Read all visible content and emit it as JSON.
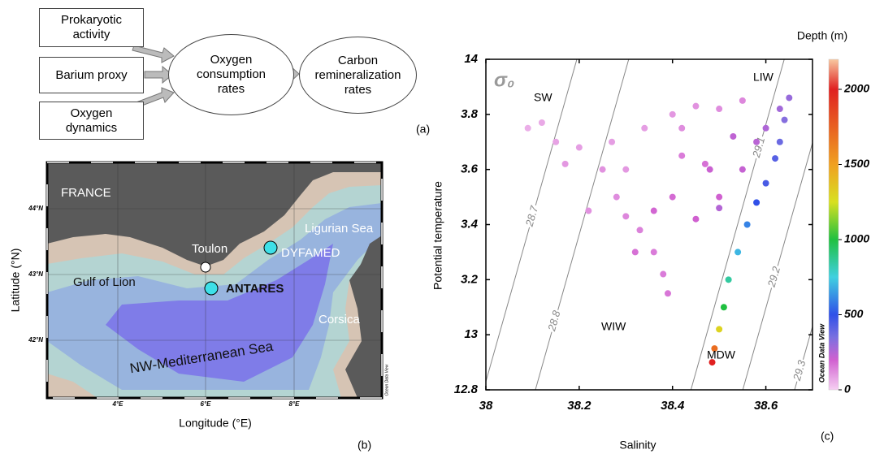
{
  "diagram": {
    "inputs": [
      "Prokaryotic activity",
      "Barium proxy",
      "Oxygen dynamics"
    ],
    "middle": "Oxygen consumption rates",
    "output": "Carbon remineralization rates",
    "panel": "(a)"
  },
  "map": {
    "labels": {
      "france": "FRANCE",
      "ligurian": "Ligurian Sea",
      "toulon": "Toulon",
      "dyfamed": "DYFAMED",
      "gulf": "Gulf of Lion",
      "antares": "ANTARES",
      "corsica": "Corsica",
      "sea": "NW-Mediterranean Sea"
    },
    "lat_ticks": [
      "44°N",
      "43°N",
      "42°N"
    ],
    "lon_ticks": [
      "4°E",
      "6°E",
      "8°E"
    ],
    "xlabel": "Longitude (°E)",
    "ylabel": "Latitude (°N)",
    "credit": "Ocean Data View",
    "panel": "(b)"
  },
  "chart_data": {
    "type": "scatter",
    "xlabel": "Salinity",
    "ylabel": "Potential temperature",
    "sigma_label": "σ₀",
    "colorbar_title": "Depth (m)",
    "credit": "Ocean Data View",
    "panel": "(c)",
    "xlim": [
      38,
      38.7
    ],
    "ylim": [
      12.8,
      14
    ],
    "xticks": [
      38,
      38.2,
      38.4,
      38.6
    ],
    "yticks": [
      12.8,
      13,
      {
        "value": 13.2,
        "label": "3.2"
      },
      {
        "value": 13.4,
        "label": "3.4"
      },
      {
        "value": 13.6,
        "label": "3.6"
      },
      {
        "value": 13.8,
        "label": "3.8"
      },
      14
    ],
    "clim": [
      0,
      2200
    ],
    "cticks": [
      0,
      500,
      1000,
      1500,
      2000
    ],
    "colorscale": [
      [
        0,
        "#f6d0f2"
      ],
      [
        200,
        "#d060d0"
      ],
      [
        350,
        "#7a70e0"
      ],
      [
        500,
        "#3050e8"
      ],
      [
        750,
        "#40d0e0"
      ],
      [
        1000,
        "#20c040"
      ],
      [
        1250,
        "#d8e020"
      ],
      [
        1500,
        "#f0a020"
      ],
      [
        2000,
        "#e02020"
      ],
      [
        2200,
        "#f8c8a0"
      ]
    ],
    "isopycnals": [
      28.7,
      28.8,
      29.1,
      29.2,
      29.3
    ],
    "annotations": [
      "SW",
      "LIW",
      "WIW",
      "MDW"
    ],
    "x": [
      38.09,
      38.12,
      38.15,
      38.2,
      38.17,
      38.25,
      38.28,
      38.3,
      38.33,
      38.36,
      38.38,
      38.39,
      38.3,
      38.34,
      38.4,
      38.45,
      38.5,
      38.55,
      38.42,
      38.47,
      38.4,
      38.36,
      38.45,
      38.5,
      38.55,
      38.58,
      38.6,
      38.63,
      38.65,
      38.64,
      38.63,
      38.62,
      38.6,
      38.58,
      38.56,
      38.54,
      38.52,
      38.51,
      38.5,
      38.49,
      38.485,
      38.5,
      38.32,
      38.22,
      38.27,
      38.42,
      38.48,
      38.53
    ],
    "values": [
      13.75,
      13.77,
      13.7,
      13.68,
      13.62,
      13.6,
      13.5,
      13.43,
      13.38,
      13.3,
      13.22,
      13.15,
      13.6,
      13.75,
      13.8,
      13.83,
      13.82,
      13.85,
      13.65,
      13.62,
      13.5,
      13.45,
      13.42,
      13.5,
      13.6,
      13.7,
      13.75,
      13.82,
      13.86,
      13.78,
      13.7,
      13.64,
      13.55,
      13.48,
      13.4,
      13.3,
      13.2,
      13.1,
      13.02,
      12.95,
      12.9,
      13.46,
      13.3,
      13.45,
      13.7,
      13.75,
      13.6,
      13.72
    ],
    "depth": [
      60,
      70,
      80,
      90,
      100,
      110,
      120,
      130,
      140,
      150,
      150,
      160,
      100,
      90,
      100,
      110,
      120,
      130,
      150,
      170,
      180,
      190,
      200,
      200,
      220,
      240,
      260,
      280,
      300,
      330,
      380,
      420,
      450,
      500,
      600,
      700,
      850,
      1000,
      1300,
      1700,
      2000,
      250,
      170,
      110,
      90,
      120,
      210,
      230
    ]
  }
}
